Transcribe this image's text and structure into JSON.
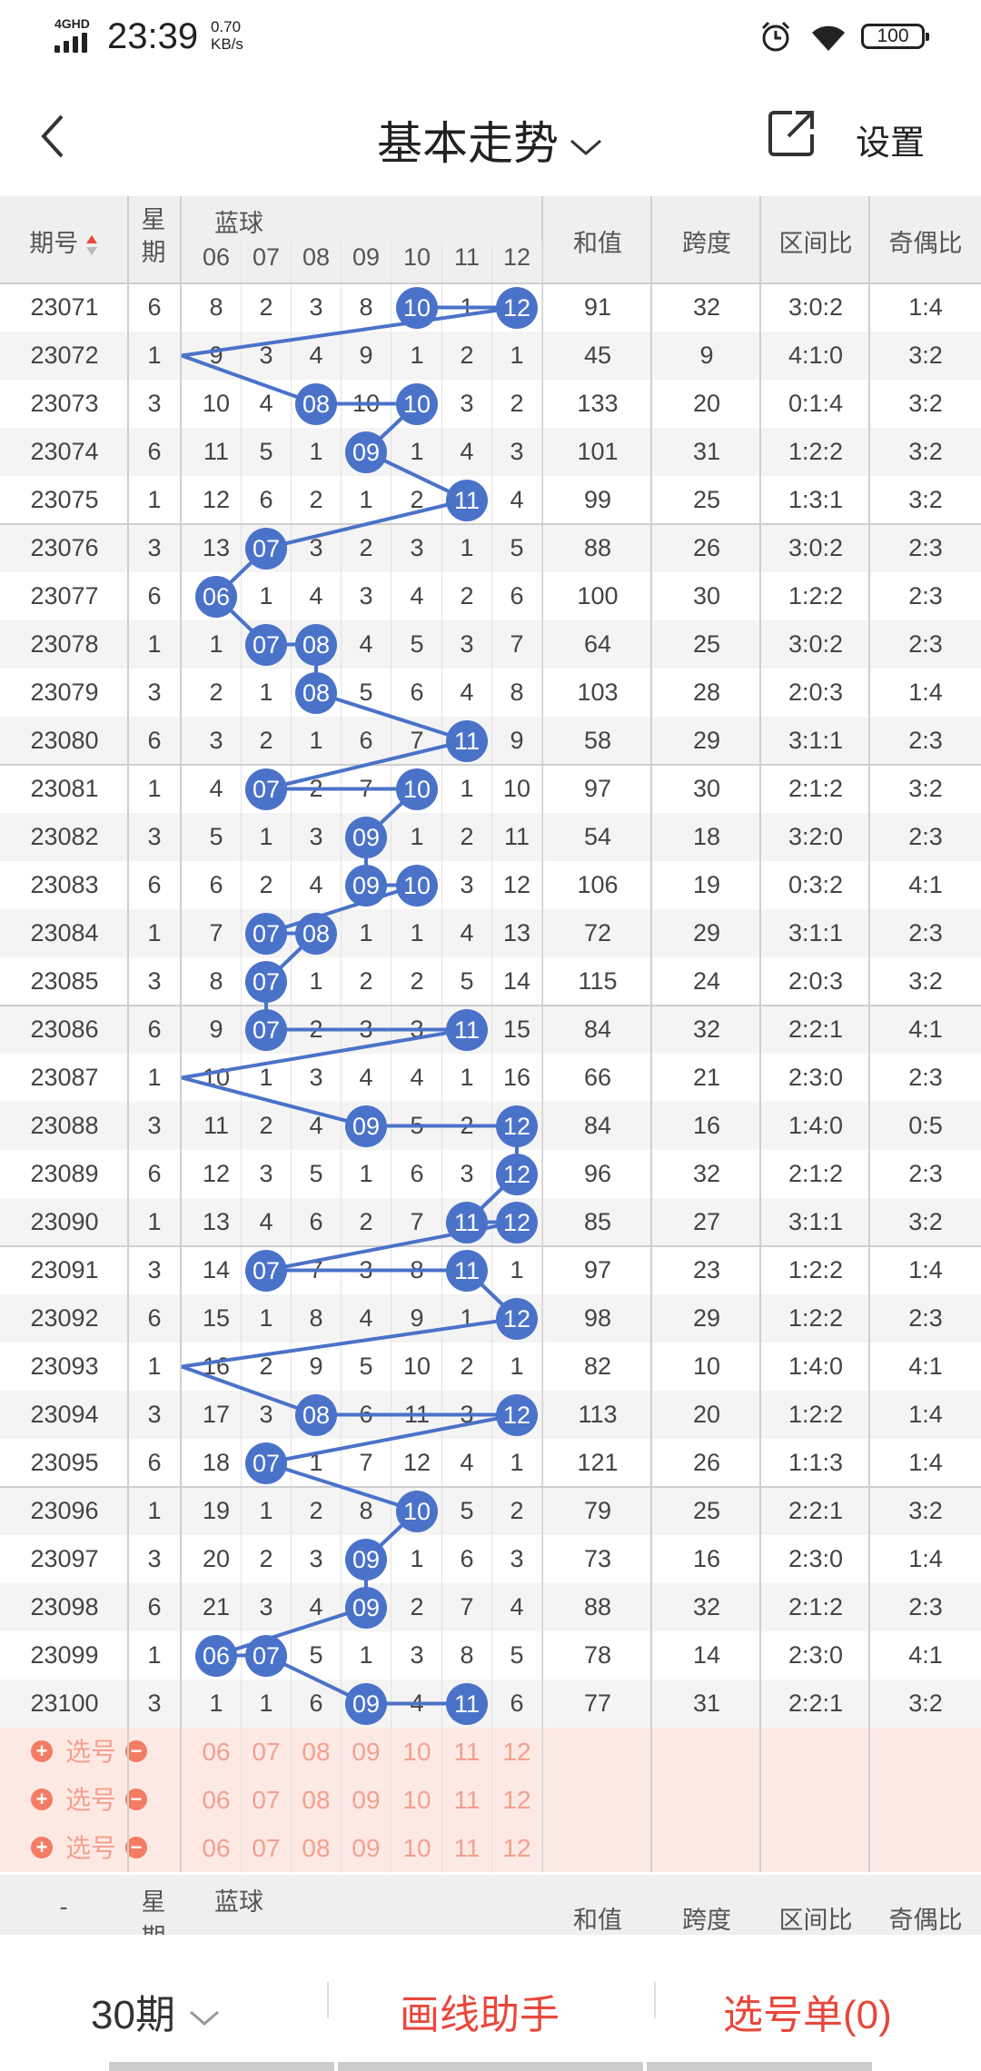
{
  "status_bar": {
    "network": "4GHD",
    "time": "23:39",
    "speed_value": "0.70",
    "speed_unit": "KB/s",
    "battery": "100"
  },
  "nav": {
    "title": "基本走势",
    "settings_label": "设置"
  },
  "table": {
    "header": {
      "period": "期号",
      "week": "星期",
      "blue": "蓝球",
      "sum": "和值",
      "span": "跨度",
      "zone": "区间比",
      "oddeven": "奇偶比"
    },
    "columns": [
      "06",
      "07",
      "08",
      "09",
      "10",
      "11",
      "12"
    ],
    "rows": [
      {
        "id": "23071",
        "wk": "6",
        "vals": [
          "8",
          "2",
          "3",
          "8",
          "10",
          "1",
          "12"
        ],
        "hits": [
          4,
          6
        ],
        "sum": "91",
        "span": "32",
        "zone": "3:0:2",
        "oe": "1:4"
      },
      {
        "id": "23072",
        "wk": "1",
        "vals": [
          "9",
          "3",
          "4",
          "9",
          "1",
          "2",
          "1"
        ],
        "hits": [],
        "sum": "45",
        "span": "9",
        "zone": "4:1:0",
        "oe": "3:2"
      },
      {
        "id": "23073",
        "wk": "3",
        "vals": [
          "10",
          "4",
          "08",
          "10",
          "10",
          "3",
          "2"
        ],
        "hits": [
          2,
          4
        ],
        "sum": "133",
        "span": "20",
        "zone": "0:1:4",
        "oe": "3:2"
      },
      {
        "id": "23074",
        "wk": "6",
        "vals": [
          "11",
          "5",
          "1",
          "09",
          "1",
          "4",
          "3"
        ],
        "hits": [
          3
        ],
        "sum": "101",
        "span": "31",
        "zone": "1:2:2",
        "oe": "3:2"
      },
      {
        "id": "23075",
        "wk": "1",
        "vals": [
          "12",
          "6",
          "2",
          "1",
          "2",
          "11",
          "4"
        ],
        "hits": [
          5
        ],
        "sum": "99",
        "span": "25",
        "zone": "1:3:1",
        "oe": "3:2"
      },
      {
        "id": "23076",
        "wk": "3",
        "vals": [
          "13",
          "07",
          "3",
          "2",
          "3",
          "1",
          "5"
        ],
        "hits": [
          1
        ],
        "sum": "88",
        "span": "26",
        "zone": "3:0:2",
        "oe": "2:3"
      },
      {
        "id": "23077",
        "wk": "6",
        "vals": [
          "06",
          "1",
          "4",
          "3",
          "4",
          "2",
          "6"
        ],
        "hits": [
          0
        ],
        "sum": "100",
        "span": "30",
        "zone": "1:2:2",
        "oe": "2:3"
      },
      {
        "id": "23078",
        "wk": "1",
        "vals": [
          "1",
          "07",
          "08",
          "4",
          "5",
          "3",
          "7"
        ],
        "hits": [
          1,
          2
        ],
        "sum": "64",
        "span": "25",
        "zone": "3:0:2",
        "oe": "2:3"
      },
      {
        "id": "23079",
        "wk": "3",
        "vals": [
          "2",
          "1",
          "08",
          "5",
          "6",
          "4",
          "8"
        ],
        "hits": [
          2
        ],
        "sum": "103",
        "span": "28",
        "zone": "2:0:3",
        "oe": "1:4"
      },
      {
        "id": "23080",
        "wk": "6",
        "vals": [
          "3",
          "2",
          "1",
          "6",
          "7",
          "11",
          "9"
        ],
        "hits": [
          5
        ],
        "sum": "58",
        "span": "29",
        "zone": "3:1:1",
        "oe": "2:3"
      },
      {
        "id": "23081",
        "wk": "1",
        "vals": [
          "4",
          "07",
          "2",
          "7",
          "10",
          "1",
          "10"
        ],
        "hits": [
          1,
          4
        ],
        "sum": "97",
        "span": "30",
        "zone": "2:1:2",
        "oe": "3:2"
      },
      {
        "id": "23082",
        "wk": "3",
        "vals": [
          "5",
          "1",
          "3",
          "09",
          "1",
          "2",
          "11"
        ],
        "hits": [
          3
        ],
        "sum": "54",
        "span": "18",
        "zone": "3:2:0",
        "oe": "2:3"
      },
      {
        "id": "23083",
        "wk": "6",
        "vals": [
          "6",
          "2",
          "4",
          "09",
          "10",
          "3",
          "12"
        ],
        "hits": [
          3,
          4
        ],
        "sum": "106",
        "span": "19",
        "zone": "0:3:2",
        "oe": "4:1"
      },
      {
        "id": "23084",
        "wk": "1",
        "vals": [
          "7",
          "07",
          "08",
          "1",
          "1",
          "4",
          "13"
        ],
        "hits": [
          1,
          2
        ],
        "sum": "72",
        "span": "29",
        "zone": "3:1:1",
        "oe": "2:3"
      },
      {
        "id": "23085",
        "wk": "3",
        "vals": [
          "8",
          "07",
          "1",
          "2",
          "2",
          "5",
          "14"
        ],
        "hits": [
          1
        ],
        "sum": "115",
        "span": "24",
        "zone": "2:0:3",
        "oe": "3:2"
      },
      {
        "id": "23086",
        "wk": "6",
        "vals": [
          "9",
          "07",
          "2",
          "3",
          "3",
          "11",
          "15"
        ],
        "hits": [
          1,
          5
        ],
        "sum": "84",
        "span": "32",
        "zone": "2:2:1",
        "oe": "4:1"
      },
      {
        "id": "23087",
        "wk": "1",
        "vals": [
          "10",
          "1",
          "3",
          "4",
          "4",
          "1",
          "16"
        ],
        "hits": [],
        "sum": "66",
        "span": "21",
        "zone": "2:3:0",
        "oe": "2:3"
      },
      {
        "id": "23088",
        "wk": "3",
        "vals": [
          "11",
          "2",
          "4",
          "09",
          "5",
          "2",
          "12"
        ],
        "hits": [
          3,
          6
        ],
        "sum": "84",
        "span": "16",
        "zone": "1:4:0",
        "oe": "0:5"
      },
      {
        "id": "23089",
        "wk": "6",
        "vals": [
          "12",
          "3",
          "5",
          "1",
          "6",
          "3",
          "12"
        ],
        "hits": [
          6
        ],
        "sum": "96",
        "span": "32",
        "zone": "2:1:2",
        "oe": "2:3"
      },
      {
        "id": "23090",
        "wk": "1",
        "vals": [
          "13",
          "4",
          "6",
          "2",
          "7",
          "11",
          "12"
        ],
        "hits": [
          5,
          6
        ],
        "sum": "85",
        "span": "27",
        "zone": "3:1:1",
        "oe": "3:2"
      },
      {
        "id": "23091",
        "wk": "3",
        "vals": [
          "14",
          "07",
          "7",
          "3",
          "8",
          "11",
          "1"
        ],
        "hits": [
          1,
          5
        ],
        "sum": "97",
        "span": "23",
        "zone": "1:2:2",
        "oe": "1:4"
      },
      {
        "id": "23092",
        "wk": "6",
        "vals": [
          "15",
          "1",
          "8",
          "4",
          "9",
          "1",
          "12"
        ],
        "hits": [
          6
        ],
        "sum": "98",
        "span": "29",
        "zone": "1:2:2",
        "oe": "2:3"
      },
      {
        "id": "23093",
        "wk": "1",
        "vals": [
          "16",
          "2",
          "9",
          "5",
          "10",
          "2",
          "1"
        ],
        "hits": [],
        "sum": "82",
        "span": "10",
        "zone": "1:4:0",
        "oe": "4:1"
      },
      {
        "id": "23094",
        "wk": "3",
        "vals": [
          "17",
          "3",
          "08",
          "6",
          "11",
          "3",
          "12"
        ],
        "hits": [
          2,
          6
        ],
        "sum": "113",
        "span": "20",
        "zone": "1:2:2",
        "oe": "1:4"
      },
      {
        "id": "23095",
        "wk": "6",
        "vals": [
          "18",
          "07",
          "1",
          "7",
          "12",
          "4",
          "1"
        ],
        "hits": [
          1
        ],
        "sum": "121",
        "span": "26",
        "zone": "1:1:3",
        "oe": "1:4"
      },
      {
        "id": "23096",
        "wk": "1",
        "vals": [
          "19",
          "1",
          "2",
          "8",
          "10",
          "5",
          "2"
        ],
        "hits": [
          4
        ],
        "sum": "79",
        "span": "25",
        "zone": "2:2:1",
        "oe": "3:2"
      },
      {
        "id": "23097",
        "wk": "3",
        "vals": [
          "20",
          "2",
          "3",
          "09",
          "1",
          "6",
          "3"
        ],
        "hits": [
          3
        ],
        "sum": "73",
        "span": "16",
        "zone": "2:3:0",
        "oe": "1:4"
      },
      {
        "id": "23098",
        "wk": "6",
        "vals": [
          "21",
          "3",
          "4",
          "09",
          "2",
          "7",
          "4"
        ],
        "hits": [
          3
        ],
        "sum": "88",
        "span": "32",
        "zone": "2:1:2",
        "oe": "2:3"
      },
      {
        "id": "23099",
        "wk": "1",
        "vals": [
          "06",
          "07",
          "5",
          "1",
          "3",
          "8",
          "5"
        ],
        "hits": [
          0,
          1
        ],
        "sum": "78",
        "span": "14",
        "zone": "2:3:0",
        "oe": "4:1"
      },
      {
        "id": "23100",
        "wk": "3",
        "vals": [
          "1",
          "1",
          "6",
          "09",
          "4",
          "11",
          "6"
        ],
        "hits": [
          3,
          5
        ],
        "sum": "77",
        "span": "31",
        "zone": "2:2:1",
        "oe": "3:2"
      }
    ],
    "pick_label": "选号",
    "bottom_header": {
      "period": "-",
      "week": "星期",
      "blue": "蓝球",
      "sum": "和值",
      "span": "跨度",
      "zone": "区间比",
      "oddeven": "奇偶比"
    }
  },
  "footer": {
    "period_label": "30期",
    "draw_helper": "画线助手",
    "pick_list": "选号单(0)"
  },
  "colors": {
    "ball": "#4a72c9",
    "accent": "#e8473a",
    "pick_bg": "#fde9e4",
    "pick_text": "#f3a08f"
  }
}
